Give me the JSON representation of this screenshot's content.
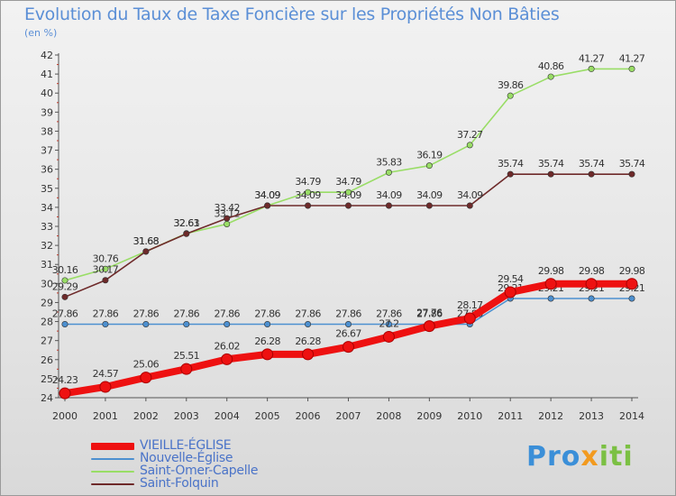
{
  "title": "Evolution du Taux de Taxe Foncière sur les Propriétés Non Bâties",
  "ylabel": "(en %)",
  "logo": {
    "text": "Proxiti",
    "colors": [
      "#3b8fd8",
      "#f29a1f",
      "#7bc043",
      "#e5322b"
    ]
  },
  "chart_data": {
    "type": "line",
    "x": [
      "2000",
      "2001",
      "2002",
      "2003",
      "2004",
      "2005",
      "2006",
      "2007",
      "2008",
      "2009",
      "2010",
      "2011",
      "2012",
      "2013",
      "2014"
    ],
    "ylim": [
      24,
      42
    ],
    "yticks": [
      24,
      25,
      26,
      27,
      28,
      29,
      30,
      31,
      32,
      33,
      34,
      35,
      36,
      37,
      38,
      39,
      40,
      41,
      42
    ],
    "grid": false,
    "legend_position": "bottom-left",
    "series": [
      {
        "name": "Saint-Omer-Capelle",
        "color": "#99dd66",
        "values": [
          30.16,
          30.76,
          31.68,
          32.63,
          33.12,
          34.09,
          34.79,
          34.79,
          35.83,
          36.19,
          37.27,
          39.86,
          40.86,
          41.27,
          41.27
        ]
      },
      {
        "name": "Saint-Folquin",
        "color": "#6e2a2a",
        "values": [
          29.29,
          30.17,
          31.68,
          32.61,
          33.42,
          34.09,
          34.09,
          34.09,
          34.09,
          34.09,
          34.09,
          35.74,
          35.74,
          35.74,
          35.74
        ]
      },
      {
        "name": "Nouvelle-Église",
        "color": "#4d90d0",
        "values": [
          27.86,
          27.86,
          27.86,
          27.86,
          27.86,
          27.86,
          27.86,
          27.86,
          27.86,
          27.86,
          27.86,
          29.21,
          29.21,
          29.21,
          29.21
        ]
      },
      {
        "name": "VIEILLE-ÉGLISE",
        "color": "#ee1111",
        "values": [
          24.23,
          24.57,
          25.06,
          25.51,
          26.02,
          26.28,
          26.28,
          26.67,
          27.2,
          27.76,
          28.17,
          29.54,
          29.98,
          29.98,
          29.98
        ]
      }
    ],
    "legend_order": [
      "VIEILLE-ÉGLISE",
      "Nouvelle-Église",
      "Saint-Omer-Capelle",
      "Saint-Folquin"
    ]
  }
}
